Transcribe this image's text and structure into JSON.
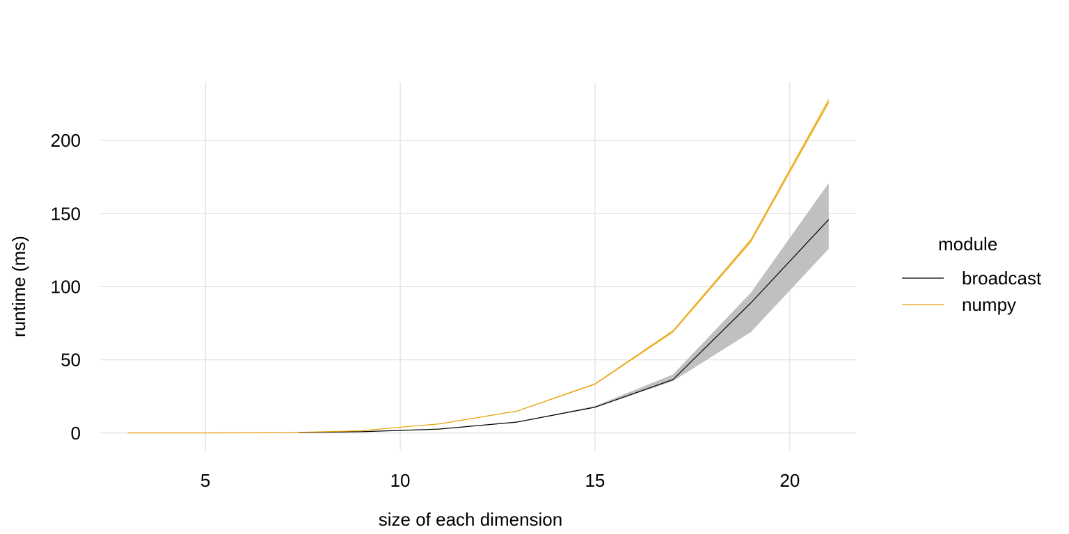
{
  "chart_data": {
    "type": "line",
    "xlabel": "size of each dimension",
    "ylabel": "runtime (ms)",
    "xlim": [
      2.3,
      21.7
    ],
    "ylim": [
      -12,
      240
    ],
    "xticks": [
      5,
      10,
      15,
      20
    ],
    "xtick_labels": [
      "5",
      "10",
      "15",
      "20"
    ],
    "yticks": [
      0,
      50,
      100,
      150,
      200
    ],
    "ytick_labels": [
      "0",
      "50",
      "100",
      "150",
      "200"
    ],
    "grid": true,
    "legend": {
      "title": "module",
      "position": "right"
    },
    "series": [
      {
        "name": "broadcast",
        "color": "#000000",
        "band_color": "#bdbdbd",
        "x": [
          7.4,
          9,
          11,
          13,
          15,
          17,
          19,
          21
        ],
        "values": [
          0.3,
          0.9,
          2.7,
          7.5,
          17.6,
          36.5,
          89,
          146
        ],
        "lower": [
          0.3,
          0.9,
          2.6,
          7.2,
          17.2,
          35.5,
          69,
          126
        ],
        "upper": [
          0.3,
          1.0,
          2.8,
          7.8,
          18.5,
          40,
          96,
          171
        ]
      },
      {
        "name": "numpy",
        "color": "#e69f00",
        "band_color": "#f2c96b",
        "x": [
          3,
          5,
          7,
          9,
          10,
          11,
          13,
          15,
          17,
          19,
          21
        ],
        "values": [
          0.1,
          0.1,
          0.2,
          1.5,
          4,
          6.2,
          15,
          33.5,
          69.5,
          131.5,
          227
        ],
        "lower": [
          0.1,
          0.1,
          0.2,
          1.4,
          3.9,
          6.0,
          14.7,
          33,
          68.5,
          130,
          225
        ],
        "upper": [
          0.1,
          0.1,
          0.2,
          1.6,
          4.1,
          6.4,
          15.3,
          34,
          70.5,
          133,
          229
        ]
      }
    ]
  }
}
